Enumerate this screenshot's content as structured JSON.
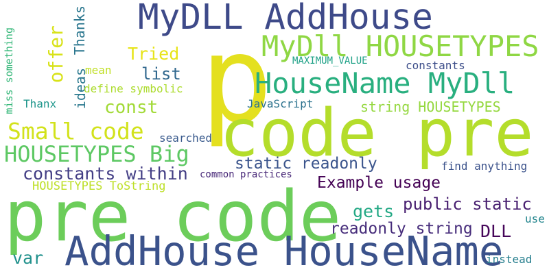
{
  "words": [
    {
      "text": "p",
      "color": "#e4e01f"
    },
    {
      "text": "code pre",
      "color": "#b4dd2b"
    },
    {
      "text": "pre code",
      "color": "#6ccd5a"
    },
    {
      "text": "MyDLL AddHouse",
      "color": "#3e4a89"
    },
    {
      "text": "AddHouse HouseName",
      "color": "#3b528b"
    },
    {
      "text": "MyDll HOUSETYPES",
      "color": "#8fd744"
    },
    {
      "text": "HouseName MyDll",
      "color": "#29af7f"
    },
    {
      "text": "Small code",
      "color": "#d2e21b"
    },
    {
      "text": "HOUSETYPES Big",
      "color": "#5dc863"
    },
    {
      "text": "constants within",
      "color": "#433e85"
    },
    {
      "text": "static readonly",
      "color": "#3a548c"
    },
    {
      "text": "Example usage",
      "color": "#440154"
    },
    {
      "text": "public static",
      "color": "#481f70"
    },
    {
      "text": "readonly string",
      "color": "#472d7b"
    },
    {
      "text": "Tried",
      "color": "#e7e419"
    },
    {
      "text": "list",
      "color": "#31688e"
    },
    {
      "text": "const",
      "color": "#a2da37"
    },
    {
      "text": "offer",
      "color": "#d8e219"
    },
    {
      "text": "ideas",
      "color": "#2a788e"
    },
    {
      "text": "Thanks",
      "color": "#2a768e"
    },
    {
      "text": "gets",
      "color": "#22a884"
    },
    {
      "text": "DLL",
      "color": "#450559"
    },
    {
      "text": "var",
      "color": "#21918c"
    },
    {
      "text": "string HOUSETYPES",
      "color": "#95d840"
    },
    {
      "text": "MAXIMUM_VALUE",
      "color": "#1fa187"
    },
    {
      "text": "constants",
      "color": "#3d4e8a"
    },
    {
      "text": "mean",
      "color": "#c0df25"
    },
    {
      "text": "define symbolic",
      "color": "#addc30"
    },
    {
      "text": "Thanx",
      "color": "#1f968b"
    },
    {
      "text": "JavaScript",
      "color": "#2c728e"
    },
    {
      "text": "searched",
      "color": "#38598c"
    },
    {
      "text": "find anything",
      "color": "#3b528b"
    },
    {
      "text": "common practices",
      "color": "#482878"
    },
    {
      "text": "HOUSETYPES ToString",
      "color": "#bddf26"
    },
    {
      "text": "use",
      "color": "#24868e"
    },
    {
      "text": "instead",
      "color": "#277f8e"
    },
    {
      "text": "miss something",
      "color": "#35b779"
    }
  ]
}
